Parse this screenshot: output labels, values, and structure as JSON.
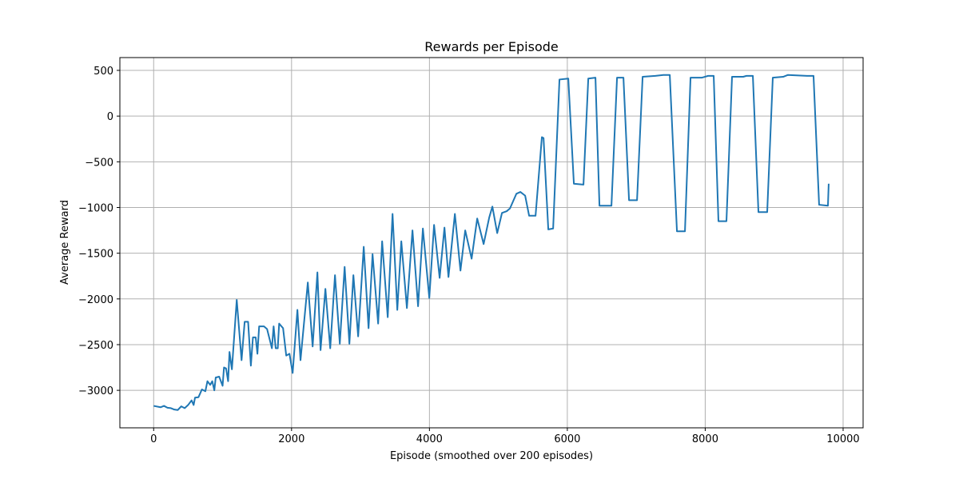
{
  "chart_data": {
    "type": "line",
    "title": "Rewards per Episode",
    "x_label": "Episode (smoothed over 200 episodes)",
    "y_label": "Average Reward",
    "xlim": [
      -490,
      10290
    ],
    "ylim": [
      -3410,
      640
    ],
    "xticks": [
      0,
      2000,
      4000,
      6000,
      8000,
      10000
    ],
    "yticks": [
      {
        "value": -3000,
        "label": "−3000"
      },
      {
        "value": -2500,
        "label": "−2500"
      },
      {
        "value": -2000,
        "label": "−2000"
      },
      {
        "value": -1500,
        "label": "−1500"
      },
      {
        "value": -1000,
        "label": "−1000"
      },
      {
        "value": -500,
        "label": "−500"
      },
      0,
      500
    ],
    "grid": true,
    "series": [
      {
        "color": "#1f77b4",
        "x": [
          0,
          100,
          150,
          200,
          250,
          300,
          350,
          400,
          450,
          500,
          550,
          580,
          600,
          650,
          700,
          750,
          780,
          820,
          850,
          880,
          900,
          950,
          1000,
          1020,
          1050,
          1080,
          1100,
          1135,
          1205,
          1275,
          1320,
          1370,
          1410,
          1440,
          1480,
          1505,
          1530,
          1600,
          1645,
          1715,
          1740,
          1770,
          1800,
          1820,
          1877,
          1923,
          1970,
          2016,
          2085,
          2130,
          2236,
          2306,
          2375,
          2421,
          2491,
          2561,
          2630,
          2700,
          2770,
          2839,
          2897,
          2966,
          3047,
          3117,
          3175,
          3256,
          3314,
          3395,
          3465,
          3534,
          3592,
          3673,
          3754,
          3835,
          3905,
          3998,
          4067,
          4148,
          4218,
          4276,
          4369,
          4450,
          4519,
          4612,
          4693,
          4786,
          4867,
          4913,
          4983,
          5052,
          5122,
          5168,
          5261,
          5319,
          5388,
          5446,
          5539,
          5631,
          5655,
          5724,
          5794,
          5886,
          6014,
          6095,
          6234,
          6304,
          6408,
          6466,
          6640,
          6721,
          6814,
          6895,
          7011,
          7092,
          7277,
          7393,
          7486,
          7590,
          7706,
          7787,
          7949,
          8042,
          8123,
          8192,
          8308,
          8389,
          8551,
          8598,
          8691,
          8772,
          8899,
          8980,
          9131,
          9200,
          9478,
          9571,
          9652,
          9780,
          9791
        ],
        "values": [
          -3170,
          -3185,
          -3170,
          -3190,
          -3195,
          -3210,
          -3215,
          -3175,
          -3195,
          -3160,
          -3110,
          -3160,
          -3080,
          -3075,
          -2990,
          -3010,
          -2900,
          -2940,
          -2900,
          -3000,
          -2860,
          -2850,
          -2950,
          -2750,
          -2760,
          -2900,
          -2580,
          -2770,
          -2010,
          -2670,
          -2250,
          -2250,
          -2730,
          -2420,
          -2420,
          -2600,
          -2300,
          -2300,
          -2330,
          -2540,
          -2300,
          -2540,
          -2540,
          -2270,
          -2320,
          -2620,
          -2600,
          -2810,
          -2120,
          -2670,
          -1820,
          -2520,
          -1710,
          -2560,
          -1890,
          -2540,
          -1740,
          -2490,
          -1650,
          -2490,
          -1740,
          -2410,
          -1430,
          -2320,
          -1510,
          -2270,
          -1370,
          -2200,
          -1070,
          -2120,
          -1370,
          -2100,
          -1250,
          -2080,
          -1230,
          -1990,
          -1190,
          -1770,
          -1220,
          -1760,
          -1070,
          -1690,
          -1250,
          -1560,
          -1120,
          -1400,
          -1110,
          -990,
          -1280,
          -1060,
          -1040,
          -1010,
          -850,
          -830,
          -870,
          -1090,
          -1090,
          -230,
          -240,
          -1240,
          -1230,
          400,
          410,
          -740,
          -750,
          410,
          420,
          -980,
          -980,
          420,
          420,
          -920,
          -920,
          430,
          440,
          450,
          450,
          -1260,
          -1260,
          420,
          420,
          440,
          440,
          -1150,
          -1150,
          430,
          430,
          440,
          440,
          -1050,
          -1050,
          420,
          430,
          450,
          440,
          440,
          -970,
          -980,
          -740
        ]
      }
    ]
  }
}
